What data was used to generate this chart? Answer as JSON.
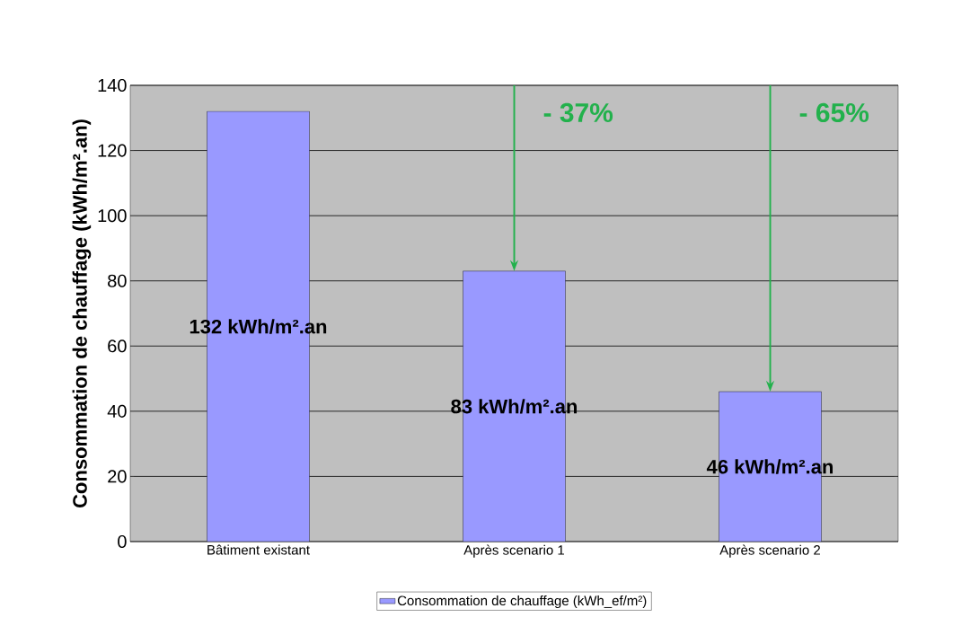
{
  "chart_data": {
    "type": "bar",
    "ylabel": "Consommation de chauffage (kWh/m².an)",
    "categories": [
      "Bâtiment existant",
      "Après scenario 1",
      "Après scenario 2"
    ],
    "series": [
      {
        "name": "Consommation de chauffage (kWh_ef/m²)",
        "color": "#9999ff",
        "values": [
          132,
          83,
          46
        ],
        "value_labels": [
          "132 kWh/m².an",
          "83 kWh/m².an",
          "46 kWh/m².an"
        ]
      }
    ],
    "ylim": [
      0,
      140
    ],
    "yticks": [
      0,
      20,
      40,
      60,
      80,
      100,
      120,
      140
    ],
    "grid": "y",
    "legend": "bottom",
    "annotations": [
      {
        "text": "- 37%",
        "x": "Après scenario 1",
        "y": 83
      },
      {
        "text": "- 65%",
        "x": "Après scenario 2",
        "y": 46
      }
    ]
  }
}
